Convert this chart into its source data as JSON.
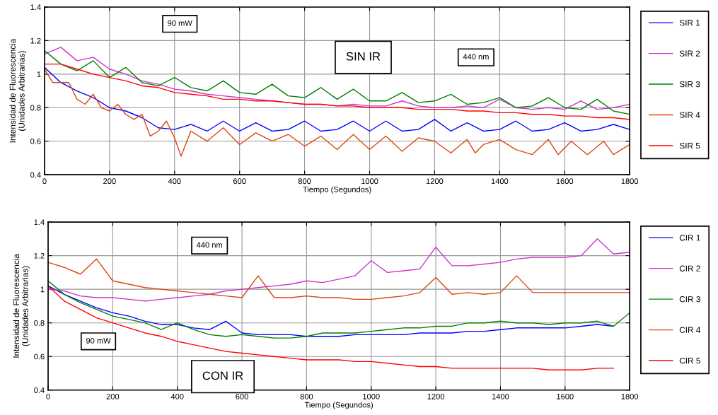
{
  "chart_data": [
    {
      "type": "line",
      "xlabel": "Tiempo (Segundos)",
      "ylabel": "Intensidad de Fluorescencia\n(Unidades Arbitrarias)",
      "annotations": [
        "90 mW",
        "SIN IR",
        "440 nm"
      ],
      "xlim": [
        0,
        1800
      ],
      "xticks": [
        0,
        200,
        400,
        600,
        800,
        1000,
        1200,
        1400,
        1600,
        1800
      ],
      "ylim": [
        0.4,
        1.4
      ],
      "yticks": [
        0.4,
        0.6,
        0.8,
        1,
        1.2,
        1.4
      ],
      "grid": true,
      "legend": "right",
      "x": [
        0,
        50,
        100,
        150,
        200,
        250,
        300,
        350,
        400,
        450,
        500,
        550,
        600,
        650,
        700,
        750,
        800,
        850,
        900,
        950,
        1000,
        1050,
        1100,
        1150,
        1200,
        1250,
        1300,
        1350,
        1400,
        1450,
        1500,
        1550,
        1600,
        1650,
        1700,
        1750,
        1800
      ],
      "series": [
        {
          "name": "SIR 1",
          "color": "#0000ff",
          "values": [
            1.04,
            0.95,
            0.9,
            0.86,
            0.8,
            0.78,
            0.74,
            0.68,
            0.67,
            0.7,
            0.66,
            0.72,
            0.66,
            0.71,
            0.66,
            0.67,
            0.72,
            0.66,
            0.67,
            0.72,
            0.66,
            0.72,
            0.66,
            0.67,
            0.73,
            0.66,
            0.71,
            0.66,
            0.67,
            0.72,
            0.66,
            0.67,
            0.71,
            0.66,
            0.67,
            0.7,
            0.67
          ]
        },
        {
          "name": "SIR 2",
          "color": "#cc33cc",
          "values": [
            1.12,
            1.16,
            1.08,
            1.1,
            1.03,
            1.0,
            0.96,
            0.94,
            0.91,
            0.9,
            0.88,
            0.87,
            0.86,
            0.85,
            0.84,
            0.83,
            0.82,
            0.82,
            0.81,
            0.82,
            0.81,
            0.81,
            0.84,
            0.81,
            0.8,
            0.8,
            0.81,
            0.8,
            0.85,
            0.8,
            0.79,
            0.8,
            0.79,
            0.84,
            0.79,
            0.8,
            0.82
          ]
        },
        {
          "name": "SIR 3",
          "color": "#008000",
          "values": [
            1.14,
            1.06,
            1.02,
            1.08,
            0.98,
            1.04,
            0.95,
            0.93,
            0.98,
            0.92,
            0.9,
            0.96,
            0.89,
            0.88,
            0.94,
            0.87,
            0.86,
            0.92,
            0.85,
            0.91,
            0.84,
            0.84,
            0.89,
            0.83,
            0.84,
            0.88,
            0.82,
            0.83,
            0.86,
            0.8,
            0.81,
            0.86,
            0.8,
            0.79,
            0.85,
            0.78,
            0.76
          ]
        },
        {
          "name": "SIR 4",
          "color": "#dd4411",
          "x": [
            0,
            25,
            75,
            100,
            125,
            150,
            175,
            200,
            225,
            250,
            275,
            300,
            325,
            350,
            375,
            400,
            420,
            450,
            500,
            550,
            600,
            650,
            700,
            750,
            800,
            850,
            900,
            950,
            1000,
            1050,
            1100,
            1150,
            1200,
            1250,
            1300,
            1325,
            1350,
            1400,
            1450,
            1500,
            1550,
            1580,
            1620,
            1670,
            1720,
            1750,
            1800
          ],
          "values": [
            1.03,
            0.95,
            0.95,
            0.85,
            0.82,
            0.88,
            0.8,
            0.78,
            0.82,
            0.76,
            0.73,
            0.76,
            0.63,
            0.66,
            0.72,
            0.62,
            0.51,
            0.66,
            0.6,
            0.68,
            0.58,
            0.65,
            0.6,
            0.64,
            0.57,
            0.63,
            0.55,
            0.64,
            0.55,
            0.63,
            0.54,
            0.62,
            0.6,
            0.53,
            0.61,
            0.53,
            0.58,
            0.61,
            0.55,
            0.52,
            0.61,
            0.52,
            0.6,
            0.52,
            0.6,
            0.52,
            0.58
          ]
        },
        {
          "name": "SIR 5",
          "color": "#ff0000",
          "values": [
            1.06,
            1.06,
            1.03,
            1.0,
            0.98,
            0.96,
            0.93,
            0.92,
            0.89,
            0.88,
            0.87,
            0.85,
            0.85,
            0.84,
            0.84,
            0.83,
            0.82,
            0.82,
            0.81,
            0.81,
            0.8,
            0.8,
            0.8,
            0.79,
            0.79,
            0.79,
            0.78,
            0.78,
            0.77,
            0.77,
            0.76,
            0.76,
            0.75,
            0.75,
            0.74,
            0.74,
            0.73
          ]
        }
      ]
    },
    {
      "type": "line",
      "xlabel": "Tiempo (Segundos)",
      "ylabel": "Intensidad de Fluorescencia\n(Unidades Arbitrarias)",
      "annotations": [
        "440 nm",
        "90 mW",
        "CON IR"
      ],
      "xlim": [
        0,
        1800
      ],
      "xticks": [
        0,
        200,
        400,
        600,
        800,
        1000,
        1200,
        1400,
        1600,
        1800
      ],
      "ylim": [
        0.4,
        1.4
      ],
      "yticks": [
        0.4,
        0.6,
        0.8,
        1,
        1.2,
        1.4
      ],
      "grid": true,
      "legend": "right",
      "x": [
        0,
        50,
        100,
        150,
        200,
        250,
        300,
        350,
        400,
        450,
        500,
        550,
        600,
        650,
        700,
        750,
        800,
        850,
        900,
        950,
        1000,
        1050,
        1100,
        1150,
        1200,
        1250,
        1300,
        1350,
        1400,
        1450,
        1500,
        1550,
        1600,
        1650,
        1700,
        1750,
        1800
      ],
      "series": [
        {
          "name": "CIR 1",
          "color": "#0000ff",
          "values": [
            1.02,
            0.97,
            0.93,
            0.89,
            0.86,
            0.84,
            0.81,
            0.79,
            0.79,
            0.77,
            0.76,
            0.81,
            0.74,
            0.73,
            0.73,
            0.73,
            0.72,
            0.72,
            0.72,
            0.73,
            0.73,
            0.73,
            0.73,
            0.74,
            0.74,
            0.74,
            0.75,
            0.75,
            0.76,
            0.77,
            0.77,
            0.77,
            0.77,
            0.78,
            0.79,
            0.78,
            null
          ]
        },
        {
          "name": "CIR 2",
          "color": "#cc33cc",
          "values": [
            1.0,
            0.99,
            0.96,
            0.95,
            0.95,
            0.94,
            0.93,
            0.94,
            0.95,
            0.96,
            0.97,
            0.99,
            1.0,
            1.01,
            1.02,
            1.03,
            1.05,
            1.04,
            1.06,
            1.08,
            1.17,
            1.1,
            1.11,
            1.12,
            1.25,
            1.14,
            1.14,
            1.15,
            1.16,
            1.18,
            1.19,
            1.19,
            1.19,
            1.2,
            1.3,
            1.21,
            1.22
          ]
        },
        {
          "name": "CIR 3",
          "color": "#008000",
          "values": [
            1.05,
            0.97,
            0.92,
            0.88,
            0.84,
            0.82,
            0.8,
            0.76,
            0.8,
            0.76,
            0.73,
            0.72,
            0.73,
            0.72,
            0.71,
            0.71,
            0.72,
            0.74,
            0.74,
            0.74,
            0.75,
            0.76,
            0.77,
            0.77,
            0.78,
            0.78,
            0.8,
            0.8,
            0.81,
            0.8,
            0.8,
            0.79,
            0.8,
            0.8,
            0.81,
            0.78,
            0.86
          ]
        },
        {
          "name": "CIR 4",
          "color": "#dd4411",
          "values": [
            1.16,
            1.13,
            1.09,
            1.18,
            1.05,
            1.03,
            1.01,
            1.0,
            0.99,
            0.98,
            0.97,
            0.96,
            0.95,
            1.08,
            0.95,
            0.95,
            0.96,
            0.95,
            0.95,
            0.94,
            0.94,
            0.95,
            0.96,
            0.98,
            1.07,
            0.97,
            0.98,
            0.97,
            0.98,
            1.08,
            0.98,
            0.98,
            0.98,
            0.98,
            0.98,
            0.98,
            0.98
          ]
        },
        {
          "name": "CIR 5",
          "color": "#ff0000",
          "values": [
            1.02,
            0.93,
            0.88,
            0.83,
            0.8,
            0.77,
            0.74,
            0.72,
            0.69,
            0.67,
            0.65,
            0.63,
            0.62,
            0.61,
            0.6,
            0.59,
            0.58,
            0.58,
            0.58,
            0.57,
            0.57,
            0.56,
            0.55,
            0.54,
            0.54,
            0.53,
            0.53,
            0.53,
            0.53,
            0.53,
            0.53,
            0.52,
            0.52,
            0.52,
            0.53,
            0.53,
            null
          ]
        }
      ]
    }
  ]
}
